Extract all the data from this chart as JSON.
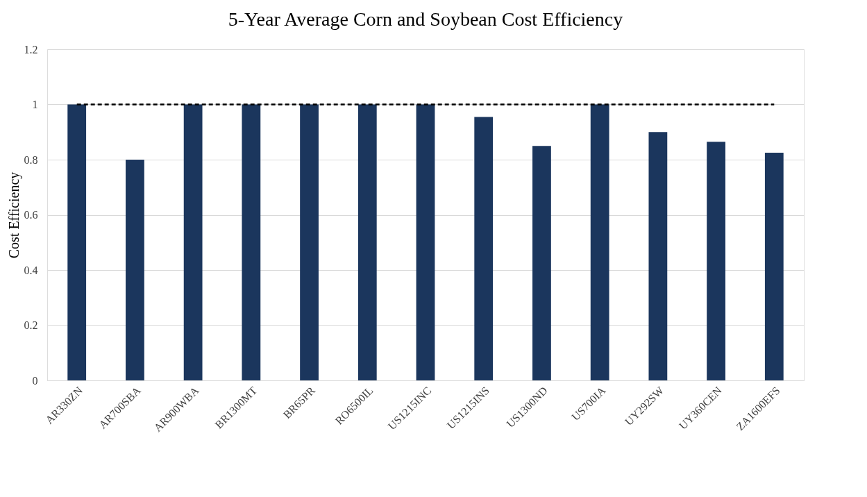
{
  "chart_data": {
    "type": "bar",
    "title": "5-Year Average Corn and Soybean Cost Efficiency",
    "ylabel": "Cost Efficiency",
    "categories": [
      "AR330ZN",
      "AR700SBA",
      "AR900WBA",
      "BR1300MT",
      "BR65PR",
      "RO6500IL",
      "US1215INC",
      "US1215INS",
      "US1300ND",
      "US700IA",
      "UY292SW",
      "UY360CEN",
      "ZA1600EFS"
    ],
    "values": [
      1,
      0.8,
      1,
      1,
      1,
      1,
      1,
      0.955,
      0.85,
      1,
      0.9,
      0.865,
      0.825
    ],
    "color": "#1b365d",
    "ylim": [
      0,
      1.2
    ],
    "yticks": [
      0,
      0.2,
      0.4,
      0.6,
      0.8,
      1,
      1.2
    ],
    "grid": "y",
    "ref_lines": [
      {
        "axis": "y",
        "value": 1,
        "color": "#000000",
        "line_style": "dashed"
      }
    ]
  }
}
